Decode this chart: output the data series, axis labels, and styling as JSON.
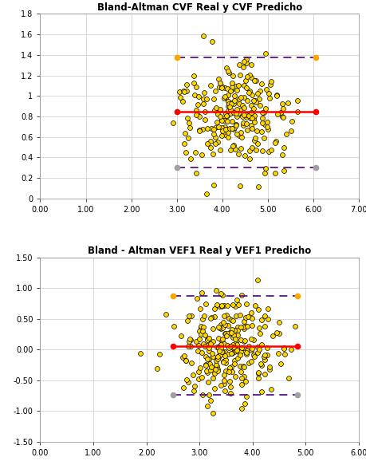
{
  "plot1": {
    "title": "Bland-Altman CVF Real y CVF Predicho",
    "xlim": [
      0.0,
      7.0
    ],
    "ylim": [
      0.0,
      1.8
    ],
    "xticks": [
      0.0,
      1.0,
      2.0,
      3.0,
      4.0,
      5.0,
      6.0,
      7.0
    ],
    "yticks": [
      0,
      0.2,
      0.4,
      0.6,
      0.8,
      1.0,
      1.2,
      1.4,
      1.6,
      1.8
    ],
    "mean_line": 0.845,
    "upper_line": 1.375,
    "lower_line": 0.305,
    "line_xstart": 3.0,
    "line_xend": 6.05,
    "mean_color": "#FF0000",
    "upper_color": "#FFA500",
    "lower_color": "#A0A0A0",
    "dash_color": "#4B0082",
    "scatter_x_mean": 4.3,
    "scatter_x_std": 0.6,
    "scatter_y_mean": 0.845,
    "scatter_y_std": 0.26,
    "scatter_x_min": 2.9,
    "scatter_x_max": 6.2,
    "n_points": 250,
    "seed": 7
  },
  "plot2": {
    "title": "Bland - Altman VEF1 Real y VEF1 Predicho",
    "xlim": [
      0.0,
      6.0
    ],
    "ylim": [
      -1.5,
      1.5
    ],
    "xticks": [
      0.0,
      1.0,
      2.0,
      3.0,
      4.0,
      5.0,
      6.0
    ],
    "yticks": [
      -1.5,
      -1.0,
      -0.5,
      0.0,
      0.5,
      1.0,
      1.5
    ],
    "mean_line": 0.06,
    "upper_line": 0.87,
    "lower_line": -0.74,
    "line_xstart": 2.5,
    "line_xend": 4.85,
    "mean_color": "#FF0000",
    "upper_color": "#FFA500",
    "lower_color": "#A0A0A0",
    "dash_color": "#4B0082",
    "scatter_x_mean": 3.55,
    "scatter_x_std": 0.48,
    "scatter_y_mean": 0.06,
    "scatter_y_std": 0.4,
    "scatter_x_min": 2.3,
    "scatter_x_max": 4.9,
    "n_points": 280,
    "seed": 15
  },
  "dot_color": "#FFD700",
  "dot_edge_color": "#000000",
  "dot_size": 18,
  "dot_linewidth": 0.5,
  "title_fontsize": 8.5,
  "tick_fontsize": 7,
  "grid_color": "#D3D3D3",
  "grid_linewidth": 0.6,
  "figure_facecolor": "#FFFFFF",
  "line_lw": 1.8,
  "dash_lw": 1.2,
  "endpoint_markersize": 4.5
}
